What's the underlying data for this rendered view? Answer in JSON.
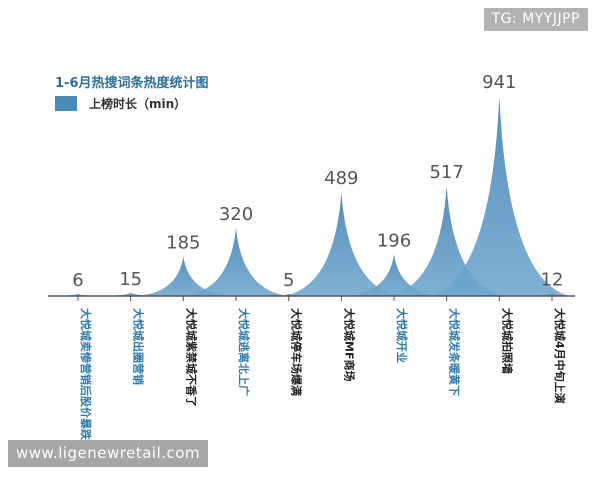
{
  "watermark_top": "TG: MYYJJPP",
  "watermark_bottom": "www.ligenewretail.com",
  "chart_data": {
    "type": "area",
    "title": "1-6月热搜词条热度统计图",
    "legend": [
      "上榜时长（min）"
    ],
    "series": [
      {
        "name": "上榜时长（min）",
        "values": [
          6,
          15,
          185,
          320,
          5,
          489,
          196,
          517,
          941,
          12
        ]
      }
    ],
    "categories": [
      "大悦城卖惨营销后股价暴跌",
      "大悦城出圈营销",
      "大悦城紫禁城不香了",
      "大悦城逃离北上广",
      "大悦城停车场爆满",
      "大悦城MF商场",
      "大悦城开业",
      "大悦城发条暖黄下",
      "大悦城拍照墙",
      "大悦城4月中旬上演"
    ],
    "category_colors": [
      "#2e7aa8",
      "#2e7aa8",
      "#222222",
      "#2e7aa8",
      "#222222",
      "#222222",
      "#2e7aa8",
      "#2e7aa8",
      "#222222",
      "#222222"
    ],
    "ylim": [
      0,
      941
    ],
    "colors": {
      "fill": "#4a8ab8",
      "fill_light": "#a9c9e2",
      "axis": "#555555",
      "value_label": "#555555"
    }
  }
}
